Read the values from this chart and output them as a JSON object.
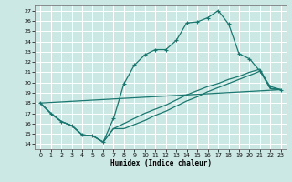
{
  "xlabel": "Humidex (Indice chaleur)",
  "xlim": [
    -0.5,
    23.5
  ],
  "ylim": [
    13.5,
    27.5
  ],
  "xticks": [
    0,
    1,
    2,
    3,
    4,
    5,
    6,
    7,
    8,
    9,
    10,
    11,
    12,
    13,
    14,
    15,
    16,
    17,
    18,
    19,
    20,
    21,
    22,
    23
  ],
  "yticks": [
    14,
    15,
    16,
    17,
    18,
    19,
    20,
    21,
    22,
    23,
    24,
    25,
    26,
    27
  ],
  "bg_color": "#cce8e4",
  "line_color": "#1a7870",
  "grid_color": "#ffffff",
  "main_x": [
    0,
    1,
    2,
    3,
    4,
    5,
    6,
    7,
    8,
    9,
    10,
    11,
    12,
    13,
    14,
    15,
    16,
    17,
    18,
    19,
    20,
    21,
    22,
    23
  ],
  "main_y": [
    18.0,
    17.0,
    16.2,
    15.8,
    14.9,
    14.8,
    14.2,
    16.5,
    19.9,
    21.7,
    22.7,
    23.2,
    23.2,
    24.1,
    25.8,
    25.9,
    26.3,
    27.0,
    25.7,
    22.8,
    22.3,
    21.1,
    19.6,
    19.3
  ],
  "line2_x": [
    0,
    1,
    2,
    3,
    4,
    5,
    6,
    7,
    8,
    9,
    10,
    11,
    12,
    13,
    14,
    15,
    16,
    17,
    18,
    19,
    20,
    21,
    22,
    23
  ],
  "line2_y": [
    18.0,
    17.0,
    16.2,
    15.8,
    14.9,
    14.8,
    14.2,
    15.5,
    16.0,
    16.5,
    17.0,
    17.4,
    17.8,
    18.3,
    18.8,
    19.2,
    19.6,
    19.9,
    20.3,
    20.6,
    21.0,
    21.3,
    19.4,
    19.3
  ],
  "line3_x": [
    0,
    23
  ],
  "line3_y": [
    18.0,
    19.3
  ],
  "line4_x": [
    0,
    1,
    2,
    3,
    4,
    5,
    6,
    7,
    8,
    9,
    10,
    11,
    12,
    13,
    14,
    15,
    16,
    17,
    18,
    19,
    20,
    21,
    22,
    23
  ],
  "line4_y": [
    18.0,
    17.0,
    16.2,
    15.8,
    14.9,
    14.8,
    14.2,
    15.5,
    15.5,
    15.9,
    16.3,
    16.8,
    17.2,
    17.7,
    18.2,
    18.6,
    19.1,
    19.5,
    19.9,
    20.3,
    20.7,
    21.1,
    19.4,
    19.3
  ]
}
